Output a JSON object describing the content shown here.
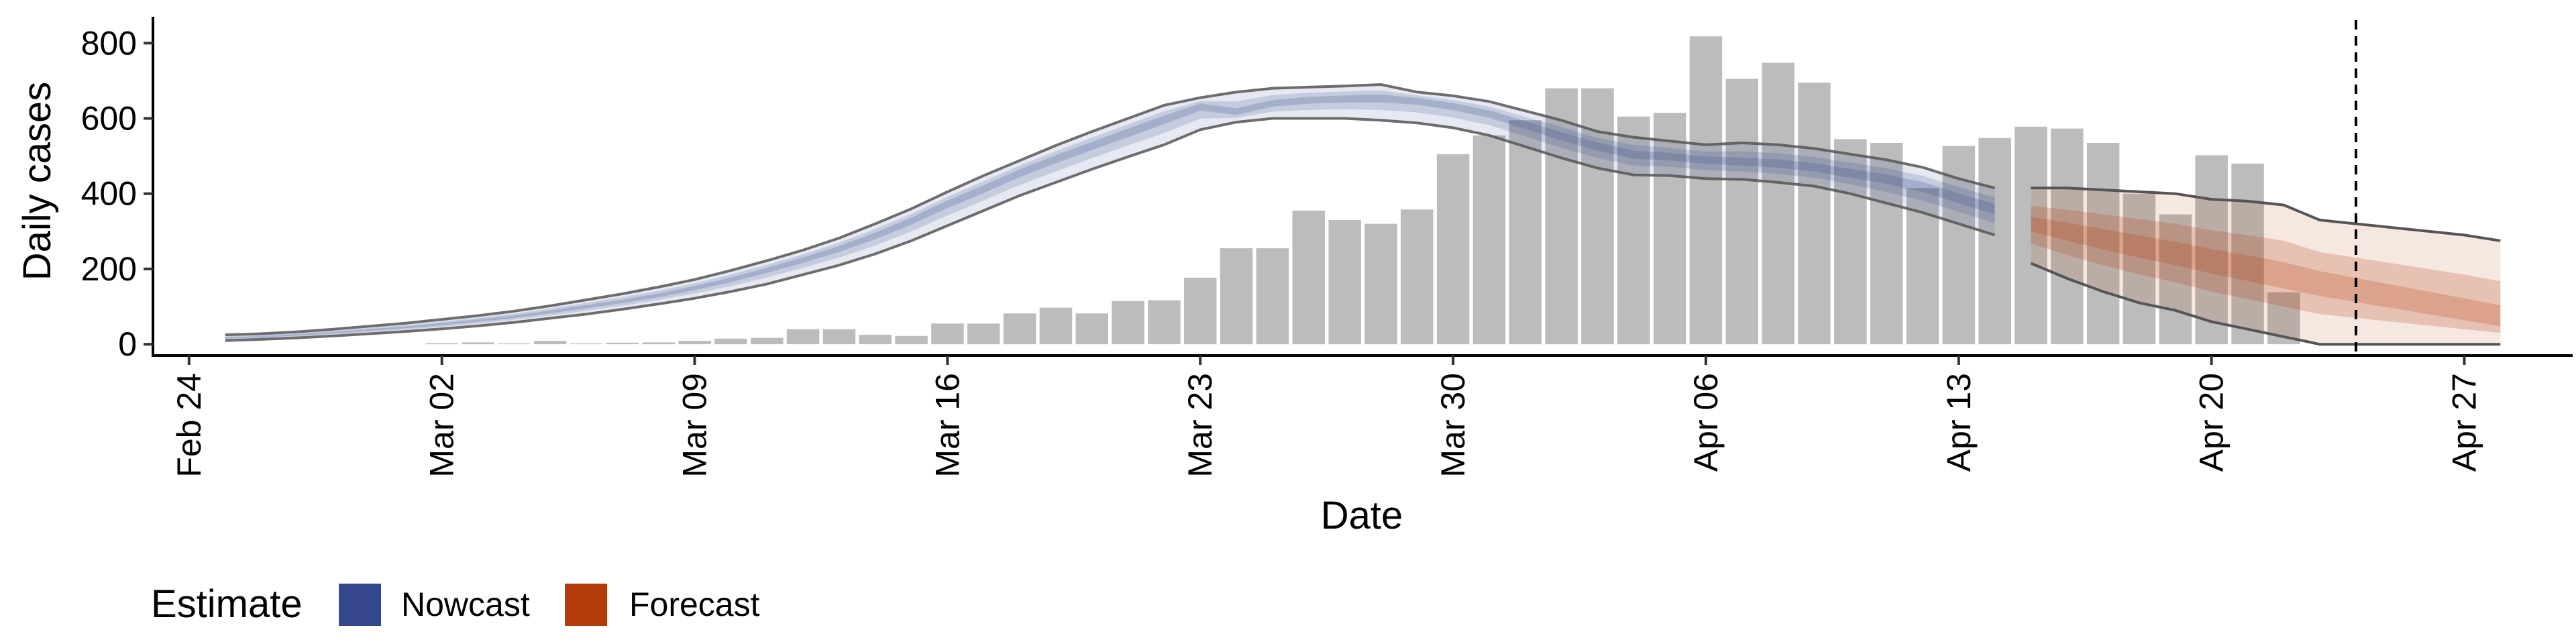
{
  "chart_data": {
    "type": "bar",
    "xlabel": "Date",
    "ylabel": "Daily cases",
    "ylim": [
      -30,
      870
    ],
    "y_ticks": [
      0,
      200,
      400,
      600,
      800
    ],
    "x_ticks": [
      {
        "date": "2020-02-24",
        "label": "Feb 24"
      },
      {
        "date": "2020-03-02",
        "label": "Mar 02"
      },
      {
        "date": "2020-03-09",
        "label": "Mar 09"
      },
      {
        "date": "2020-03-16",
        "label": "Mar 16"
      },
      {
        "date": "2020-03-23",
        "label": "Mar 23"
      },
      {
        "date": "2020-03-30",
        "label": "Mar 30"
      },
      {
        "date": "2020-04-06",
        "label": "Apr 06"
      },
      {
        "date": "2020-04-13",
        "label": "Apr 13"
      },
      {
        "date": "2020-04-20",
        "label": "Apr 20"
      },
      {
        "date": "2020-04-27",
        "label": "Apr 27"
      }
    ],
    "xlim": [
      "2020-02-23",
      "2020-04-30"
    ],
    "vline_date": "2020-04-24",
    "grid": false,
    "legend_title": "Estimate",
    "legend_position": "bottom-left",
    "legend": [
      {
        "label": "Nowcast",
        "color": "#34478a"
      },
      {
        "label": "Forecast",
        "color": "#b23a0b"
      }
    ],
    "colors": {
      "bars": "#bcbcbc",
      "nowcast": "#34478a",
      "forecast": "#b23a0b",
      "band_edge": "#555555"
    },
    "observed_cases": {
      "dates": [
        "2020-03-02",
        "2020-03-03",
        "2020-03-04",
        "2020-03-05",
        "2020-03-06",
        "2020-03-07",
        "2020-03-08",
        "2020-03-09",
        "2020-03-10",
        "2020-03-11",
        "2020-03-12",
        "2020-03-13",
        "2020-03-14",
        "2020-03-15",
        "2020-03-16",
        "2020-03-17",
        "2020-03-18",
        "2020-03-19",
        "2020-03-20",
        "2020-03-21",
        "2020-03-22",
        "2020-03-23",
        "2020-03-24",
        "2020-03-25",
        "2020-03-26",
        "2020-03-27",
        "2020-03-28",
        "2020-03-29",
        "2020-03-30",
        "2020-03-31",
        "2020-04-01",
        "2020-04-02",
        "2020-04-03",
        "2020-04-04",
        "2020-04-05",
        "2020-04-06",
        "2020-04-07",
        "2020-04-08",
        "2020-04-09",
        "2020-04-10",
        "2020-04-11",
        "2020-04-12",
        "2020-04-13",
        "2020-04-14",
        "2020-04-15",
        "2020-04-16",
        "2020-04-17",
        "2020-04-18",
        "2020-04-19",
        "2020-04-20",
        "2020-04-21",
        "2020-04-22"
      ],
      "values": [
        3,
        5,
        2,
        9,
        2,
        4,
        5,
        9,
        15,
        17,
        40,
        40,
        25,
        22,
        55,
        55,
        82,
        97,
        82,
        115,
        117,
        177,
        255,
        255,
        355,
        330,
        320,
        358,
        505,
        555,
        595,
        680,
        680,
        605,
        615,
        818,
        705,
        748,
        695,
        545,
        535,
        415,
        527,
        548,
        578,
        573,
        535,
        400,
        345,
        502,
        480,
        138
      ]
    },
    "nowcast": {
      "dates": [
        "2020-02-25",
        "2020-02-26",
        "2020-02-27",
        "2020-02-28",
        "2020-02-29",
        "2020-03-01",
        "2020-03-02",
        "2020-03-03",
        "2020-03-04",
        "2020-03-05",
        "2020-03-06",
        "2020-03-07",
        "2020-03-08",
        "2020-03-09",
        "2020-03-10",
        "2020-03-11",
        "2020-03-12",
        "2020-03-13",
        "2020-03-14",
        "2020-03-15",
        "2020-03-16",
        "2020-03-17",
        "2020-03-18",
        "2020-03-19",
        "2020-03-20",
        "2020-03-21",
        "2020-03-22",
        "2020-03-23",
        "2020-03-24",
        "2020-03-25",
        "2020-03-26",
        "2020-03-27",
        "2020-03-28",
        "2020-03-29",
        "2020-03-30",
        "2020-03-31",
        "2020-04-01",
        "2020-04-02",
        "2020-04-03",
        "2020-04-04",
        "2020-04-05",
        "2020-04-06",
        "2020-04-07",
        "2020-04-08",
        "2020-04-09",
        "2020-04-10",
        "2020-04-11",
        "2020-04-12",
        "2020-04-13",
        "2020-04-14"
      ],
      "median": [
        16,
        20,
        25,
        31,
        38,
        45,
        53,
        63,
        73,
        86,
        100,
        114,
        130,
        150,
        172,
        198,
        225,
        255,
        290,
        330,
        375,
        415,
        458,
        495,
        530,
        565,
        600,
        635,
        615,
        640,
        650,
        654,
        656,
        650,
        635,
        615,
        585,
        555,
        528,
        505,
        500,
        490,
        485,
        480,
        470,
        455,
        440,
        420,
        390,
        360
      ],
      "lower": [
        10,
        13,
        17,
        22,
        28,
        34,
        41,
        49,
        58,
        69,
        80,
        93,
        107,
        122,
        140,
        160,
        185,
        210,
        240,
        275,
        315,
        355,
        395,
        430,
        465,
        498,
        530,
        570,
        590,
        600,
        600,
        600,
        595,
        588,
        575,
        555,
        525,
        495,
        468,
        450,
        448,
        440,
        438,
        430,
        420,
        400,
        375,
        350,
        320,
        290
      ],
      "upper": [
        25,
        28,
        33,
        40,
        48,
        56,
        66,
        76,
        88,
        102,
        118,
        134,
        152,
        172,
        196,
        222,
        250,
        282,
        320,
        360,
        405,
        448,
        488,
        528,
        565,
        600,
        635,
        655,
        670,
        680,
        683,
        686,
        690,
        670,
        660,
        645,
        620,
        595,
        565,
        550,
        540,
        530,
        535,
        530,
        520,
        505,
        490,
        470,
        440,
        415
      ]
    },
    "forecast": {
      "dates": [
        "2020-04-15",
        "2020-04-16",
        "2020-04-17",
        "2020-04-18",
        "2020-04-19",
        "2020-04-20",
        "2020-04-21",
        "2020-04-22",
        "2020-04-23",
        "2020-04-24",
        "2020-04-25",
        "2020-04-26",
        "2020-04-27",
        "2020-04-28"
      ],
      "median": [
        320,
        300,
        280,
        260,
        240,
        220,
        200,
        180,
        160,
        140,
        120,
        100,
        80,
        60
      ],
      "lower": [
        215,
        175,
        140,
        110,
        90,
        60,
        40,
        20,
        0,
        0,
        0,
        0,
        0,
        0
      ],
      "upper": [
        415,
        415,
        410,
        405,
        400,
        385,
        380,
        370,
        330,
        320,
        310,
        300,
        290,
        275
      ]
    }
  }
}
